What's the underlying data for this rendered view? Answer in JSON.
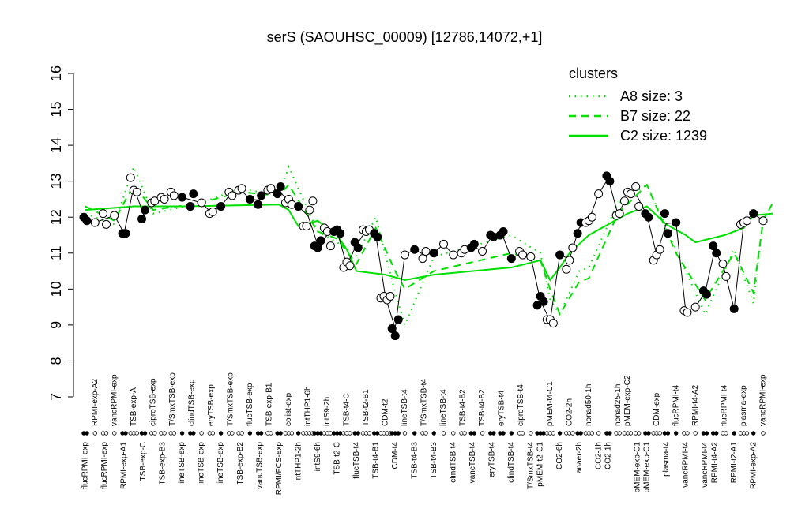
{
  "chart_data": {
    "type": "scatter",
    "title": "serS (SAOUHSC_00009) [12786,14072,+1]",
    "ylim": [
      7,
      16
    ],
    "yticks": [
      7,
      8,
      9,
      10,
      11,
      12,
      13,
      14,
      15,
      16
    ],
    "groups": [
      {
        "label": "flucRPMI-exp",
        "side": "bottom",
        "filled": true,
        "values": [
          12.0,
          11.9
        ]
      },
      {
        "label": "RPMI-exp-A2",
        "side": "top",
        "filled": false,
        "values": [
          11.85
        ]
      },
      {
        "label": "flucRPMI-exp",
        "side": "bottom",
        "filled": false,
        "values": [
          12.1,
          11.8
        ]
      },
      {
        "label": "vancRPMI-exp",
        "side": "top",
        "filled": false,
        "values": [
          12.05
        ]
      },
      {
        "label": "RPMI-exp-A1",
        "side": "bottom",
        "filled": true,
        "values": [
          11.55,
          11.55
        ]
      },
      {
        "label": "TSB-exp-A",
        "side": "top",
        "filled": false,
        "values": [
          13.1,
          12.75,
          12.7
        ]
      },
      {
        "label": "TSB-exp-C",
        "side": "bottom",
        "filled": true,
        "values": [
          11.95,
          12.2
        ]
      },
      {
        "label": "ciproTSB-exp",
        "side": "top",
        "filled": false,
        "values": [
          12.4,
          12.45
        ]
      },
      {
        "label": "TSB-exp-B3",
        "side": "bottom",
        "filled": false,
        "values": [
          12.55,
          12.5
        ]
      },
      {
        "label": "T/SmxTSB-exp",
        "side": "top",
        "filled": false,
        "values": [
          12.7,
          12.6
        ]
      },
      {
        "label": "lineTSB-exp",
        "side": "bottom",
        "filled": true,
        "values": [
          12.55
        ]
      },
      {
        "label": "clindTSB-exp",
        "side": "top",
        "filled": true,
        "values": [
          12.3,
          12.65
        ]
      },
      {
        "label": "lineTSB-exp",
        "side": "bottom",
        "filled": false,
        "values": [
          12.4
        ]
      },
      {
        "label": "eryTSB-exp",
        "side": "top",
        "filled": false,
        "values": [
          12.1,
          12.15
        ]
      },
      {
        "label": "lineTSB-exp",
        "side": "bottom",
        "filled": true,
        "values": [
          12.3
        ]
      },
      {
        "label": "T/SmxTSB-exp",
        "side": "top",
        "filled": false,
        "values": [
          12.7,
          12.6
        ]
      },
      {
        "label": "TSB-exp-B2",
        "side": "bottom",
        "filled": false,
        "values": [
          12.75,
          12.8
        ]
      },
      {
        "label": "flucTSB-exp",
        "side": "top",
        "filled": true,
        "values": [
          12.5
        ]
      },
      {
        "label": "vancTSB-exp",
        "side": "bottom",
        "filled": true,
        "values": [
          12.35,
          12.6
        ]
      },
      {
        "label": "TSB-exp-B1",
        "side": "top",
        "filled": false,
        "values": [
          12.75,
          12.8
        ]
      },
      {
        "label": "RPMI/FCS-exp",
        "side": "bottom",
        "filled": true,
        "values": [
          12.65,
          12.85
        ]
      },
      {
        "label": "colist-exp",
        "side": "top",
        "filled": false,
        "values": [
          12.4,
          12.5,
          12.35
        ]
      },
      {
        "label": "intTHP1-2h",
        "side": "bottom",
        "filled": true,
        "values": [
          12.3
        ]
      },
      {
        "label": "intTHP1-6h",
        "side": "top",
        "filled": false,
        "values": [
          11.75,
          11.75,
          12.2,
          12.45
        ]
      },
      {
        "label": "intS9-6h",
        "side": "bottom",
        "filled": true,
        "values": [
          11.2,
          11.15,
          11.35
        ]
      },
      {
        "label": "intS9-2h",
        "side": "top",
        "filled": false,
        "values": [
          11.7,
          11.6,
          11.2
        ]
      },
      {
        "label": "TSB-t2-C",
        "side": "bottom",
        "filled": true,
        "values": [
          11.6,
          11.65,
          11.55
        ]
      },
      {
        "label": "TSB-t4-C",
        "side": "top",
        "filled": false,
        "values": [
          10.6,
          10.75,
          10.65
        ]
      },
      {
        "label": "flucTSB-t4",
        "side": "bottom",
        "filled": true,
        "values": [
          11.3,
          11.15
        ]
      },
      {
        "label": "TSB-t2-B1",
        "side": "top",
        "filled": false,
        "values": [
          11.65,
          11.6,
          11.65
        ]
      },
      {
        "label": "TSB-t4-B1",
        "side": "bottom",
        "filled": true,
        "values": [
          11.55,
          11.45
        ]
      },
      {
        "label": "CDM-t2",
        "side": "top",
        "filled": false,
        "values": [
          9.75,
          9.8,
          9.7,
          9.8
        ]
      },
      {
        "label": "CDM-t4",
        "side": "bottom",
        "filled": true,
        "values": [
          8.9,
          8.7,
          9.15
        ]
      },
      {
        "label": "lineTSB-t4",
        "side": "top",
        "filled": false,
        "values": [
          10.95
        ]
      },
      {
        "label": "TSB-t4-B3",
        "side": "bottom",
        "filled": true,
        "values": [
          11.1
        ]
      },
      {
        "label": "T/SmxTSB-t4",
        "side": "top",
        "filled": false,
        "values": [
          10.85,
          11.05
        ]
      },
      {
        "label": "TSB-t4-B3",
        "side": "bottom",
        "filled": true,
        "values": [
          11.0
        ]
      },
      {
        "label": "lineTSB-t4",
        "side": "top",
        "filled": false,
        "values": [
          11.25
        ]
      },
      {
        "label": "clindTSB-t4",
        "side": "bottom",
        "filled": false,
        "values": [
          10.95
        ]
      },
      {
        "label": "TSB-t4-B2",
        "side": "top",
        "filled": false,
        "values": [
          11.0,
          11.1
        ]
      },
      {
        "label": "vancTSB-t4",
        "side": "bottom",
        "filled": true,
        "values": [
          11.15,
          11.25
        ]
      },
      {
        "label": "TSB-t4-B2",
        "side": "top",
        "filled": false,
        "values": [
          11.05
        ]
      },
      {
        "label": "eryTSB-t4",
        "side": "bottom",
        "filled": true,
        "values": [
          11.5,
          11.45
        ]
      },
      {
        "label": "eryTSB-t4",
        "side": "top",
        "filled": true,
        "values": [
          11.5,
          11.6
        ]
      },
      {
        "label": "clindTSB-t4",
        "side": "bottom",
        "filled": true,
        "values": [
          10.85
        ]
      },
      {
        "label": "ciproTSB-t4",
        "side": "top",
        "filled": false,
        "values": [
          11.05,
          10.95
        ]
      },
      {
        "label": "T/SmxTSB-t4",
        "side": "bottom",
        "filled": false,
        "values": [
          10.9
        ]
      },
      {
        "label": "pMEM-t2-C1",
        "side": "bottom",
        "filled": true,
        "values": [
          9.55,
          9.8,
          9.65
        ]
      },
      {
        "label": "pMEM-t4-C1",
        "side": "top",
        "filled": false,
        "values": [
          9.15,
          9.15,
          9.05
        ]
      },
      {
        "label": "CO2-6h",
        "side": "bottom",
        "filled": true,
        "values": [
          10.95
        ]
      },
      {
        "label": "CO2-2h",
        "side": "top",
        "filled": false,
        "values": [
          10.55,
          10.8,
          11.15
        ]
      },
      {
        "label": "anaer-2h",
        "side": "bottom",
        "filled": true,
        "values": [
          11.55,
          11.85
        ]
      },
      {
        "label": "nonad50-1h",
        "side": "top",
        "filled": false,
        "values": [
          11.85,
          11.9,
          12.0
        ]
      },
      {
        "label": "CO2-1h",
        "side": "bottom",
        "filled": false,
        "values": [
          12.65
        ]
      },
      {
        "label": "CO2-1h",
        "side": "bottom",
        "filled": true,
        "values": [
          13.15,
          13.0
        ]
      },
      {
        "label": "nonad25-1h",
        "side": "top",
        "filled": false,
        "values": [
          12.05,
          12.1
        ]
      },
      {
        "label": "pMEM-exp-C2",
        "side": "top",
        "filled": false,
        "values": [
          12.45,
          12.7,
          12.65
        ]
      },
      {
        "label": "pMEM-exp-C1",
        "side": "bottom",
        "filled": false,
        "values": [
          12.85,
          12.3
        ]
      },
      {
        "label": "pMEM-exp-C1",
        "side": "bottom",
        "filled": true,
        "values": [
          12.1,
          12.0
        ]
      },
      {
        "label": "CDM-exp",
        "side": "top",
        "filled": false,
        "values": [
          10.8,
          10.95,
          11.1
        ]
      },
      {
        "label": "plasma-t4",
        "side": "bottom",
        "filled": true,
        "values": [
          12.1,
          11.55
        ]
      },
      {
        "label": "flucRPMI-t4",
        "side": "top",
        "filled": true,
        "values": [
          11.85
        ]
      },
      {
        "label": "vancRPMI-t4",
        "side": "bottom",
        "filled": false,
        "values": [
          9.4,
          9.35
        ]
      },
      {
        "label": "RPMI-t4-A2",
        "side": "top",
        "filled": false,
        "values": [
          9.5
        ]
      },
      {
        "label": "vancRPMI-t4",
        "side": "bottom",
        "filled": true,
        "values": [
          9.95,
          9.85
        ]
      },
      {
        "label": "RPMI-t4-A2",
        "side": "bottom",
        "filled": true,
        "values": [
          11.2,
          11.0
        ]
      },
      {
        "label": "flucRPMI-t4",
        "side": "top",
        "filled": false,
        "values": [
          10.7,
          10.35
        ]
      },
      {
        "label": "RPMI-t2-A1",
        "side": "bottom",
        "filled": true,
        "values": [
          9.45
        ]
      },
      {
        "label": "plasma-exp",
        "side": "top",
        "filled": false,
        "values": [
          11.8,
          11.85,
          11.9
        ]
      },
      {
        "label": "RPMI-exp-A2",
        "side": "bottom",
        "filled": true,
        "values": [
          12.1
        ]
      },
      {
        "label": "vancRPMI-exp",
        "side": "top",
        "filled": false,
        "values": [
          11.9
        ]
      }
    ],
    "clusters": {
      "title": "clusters",
      "color": "#00e000",
      "legend": "upper right",
      "series": [
        {
          "name": "A8 size: 3",
          "style": "dotted",
          "x": [
            0,
            3,
            5,
            7,
            12,
            16,
            20,
            21,
            24,
            26,
            28,
            30,
            32,
            33,
            36,
            44,
            47,
            48,
            49,
            51,
            52,
            55,
            58,
            61,
            64,
            67,
            69,
            70,
            71
          ],
          "values": [
            12.1,
            11.8,
            13.4,
            12.1,
            12.4,
            12.8,
            12.6,
            13.4,
            11.6,
            11.3,
            10.9,
            12.0,
            9.9,
            9.0,
            10.9,
            11.5,
            11.0,
            9.7,
            9.3,
            10.5,
            10.6,
            12.4,
            12.9,
            11.1,
            9.3,
            11.1,
            9.6,
            12.0,
            12.1
          ]
        },
        {
          "name": "B7 size: 22",
          "style": "dashed",
          "x": [
            0,
            3,
            5,
            7,
            12,
            16,
            20,
            21,
            24,
            26,
            28,
            30,
            32,
            33,
            36,
            44,
            47,
            48,
            49,
            51,
            52,
            55,
            58,
            61,
            64,
            67,
            69,
            70,
            71
          ],
          "values": [
            12.3,
            11.9,
            12.9,
            12.2,
            12.4,
            12.7,
            12.6,
            12.9,
            11.6,
            11.4,
            10.7,
            11.7,
            10.5,
            10.0,
            10.5,
            11.0,
            10.8,
            10.0,
            9.3,
            10.2,
            10.3,
            12.1,
            12.9,
            11.0,
            9.7,
            11.0,
            9.9,
            11.9,
            12.4
          ]
        },
        {
          "name": "C2 size: 1239",
          "style": "solid",
          "x": [
            0,
            5,
            10,
            20,
            21,
            22,
            24,
            26,
            27,
            28,
            31,
            33,
            36,
            44,
            47,
            48,
            49,
            50,
            52,
            54,
            56,
            58,
            60,
            62,
            63,
            66,
            68,
            69,
            71
          ],
          "values": [
            12.2,
            12.3,
            12.3,
            12.35,
            12.2,
            11.75,
            11.9,
            11.5,
            11.1,
            10.5,
            10.4,
            10.25,
            10.4,
            10.6,
            10.8,
            10.25,
            10.6,
            11.0,
            11.5,
            11.8,
            12.1,
            12.3,
            11.8,
            11.5,
            11.3,
            11.5,
            11.7,
            12.05,
            12.1
          ]
        }
      ]
    }
  }
}
